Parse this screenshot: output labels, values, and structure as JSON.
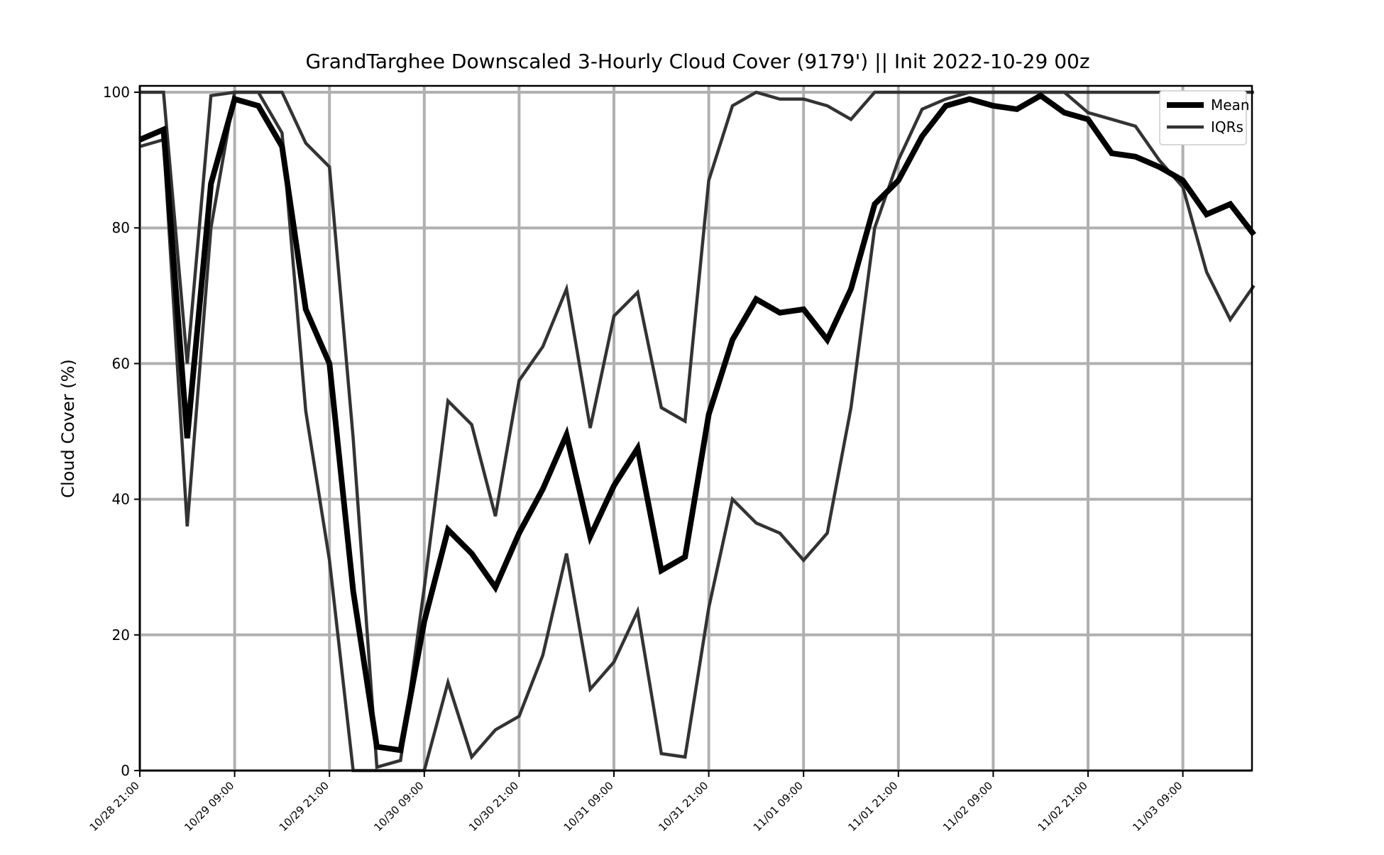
{
  "chart_data": {
    "type": "line",
    "title": "GrandTarghee Downscaled 3-Hourly Cloud Cover (9179') || Init 2022-10-29 00z",
    "xlabel": "",
    "ylabel": "Cloud Cover (%)",
    "ylim": [
      0,
      100
    ],
    "yticks": [
      0,
      20,
      40,
      60,
      80,
      100
    ],
    "x_start": "10/28 21:00",
    "x_step_hours": 3,
    "x_ticks": [
      "10/28 21:00",
      "10/29 09:00",
      "10/29 21:00",
      "10/30 09:00",
      "10/30 21:00",
      "10/31 09:00",
      "10/31 21:00",
      "11/01 09:00",
      "11/01 21:00",
      "11/02 09:00",
      "11/02 21:00",
      "11/03 09:00"
    ],
    "grid": true,
    "legend_position": "top-right",
    "series": [
      {
        "name": "Mean",
        "color": "#000000",
        "values": [
          93,
          94.5,
          49,
          86.5,
          99,
          98,
          92,
          68,
          60,
          26.5,
          3.5,
          3,
          22,
          35.5,
          32,
          27,
          35,
          41.5,
          49.5,
          34.5,
          42,
          47.5,
          29.5,
          31.5,
          52.5,
          63.5,
          69.5,
          67.5,
          68,
          63.5,
          71,
          83.5,
          87,
          93.5,
          98,
          99,
          98,
          97.5,
          99.5,
          97,
          96,
          91,
          90.5,
          89,
          87,
          82,
          83.5,
          79
        ]
      },
      {
        "name": "IQRs",
        "color": "#333333",
        "values": [
          92,
          93,
          36,
          80,
          100,
          100,
          94,
          53,
          31,
          0,
          0,
          0,
          0,
          13,
          2,
          6,
          8,
          17,
          32,
          12,
          16,
          23.5,
          2.5,
          2,
          24,
          40,
          36.5,
          35,
          31,
          35,
          53.5,
          80,
          90,
          97.5,
          99,
          100,
          100,
          100,
          100,
          100,
          100,
          100,
          100,
          100,
          100,
          100,
          100,
          100
        ]
      },
      {
        "name": "",
        "color": "#333333",
        "values": [
          100,
          100,
          60,
          99.5,
          100,
          100,
          100,
          92.5,
          89,
          49,
          0.5,
          1.5,
          27,
          54.5,
          51,
          37.5,
          57.5,
          62.5,
          71,
          50.5,
          67,
          70.5,
          53.5,
          51.5,
          87,
          98,
          100,
          99,
          99,
          98,
          96,
          100,
          100,
          100,
          100,
          100,
          100,
          100,
          100,
          100,
          97,
          96,
          95,
          90,
          86,
          73.5,
          66.5,
          71.5
        ]
      }
    ],
    "legend": [
      {
        "label": "Mean",
        "color": "#000000"
      },
      {
        "label": "IQRs",
        "color": "#333333"
      }
    ]
  }
}
